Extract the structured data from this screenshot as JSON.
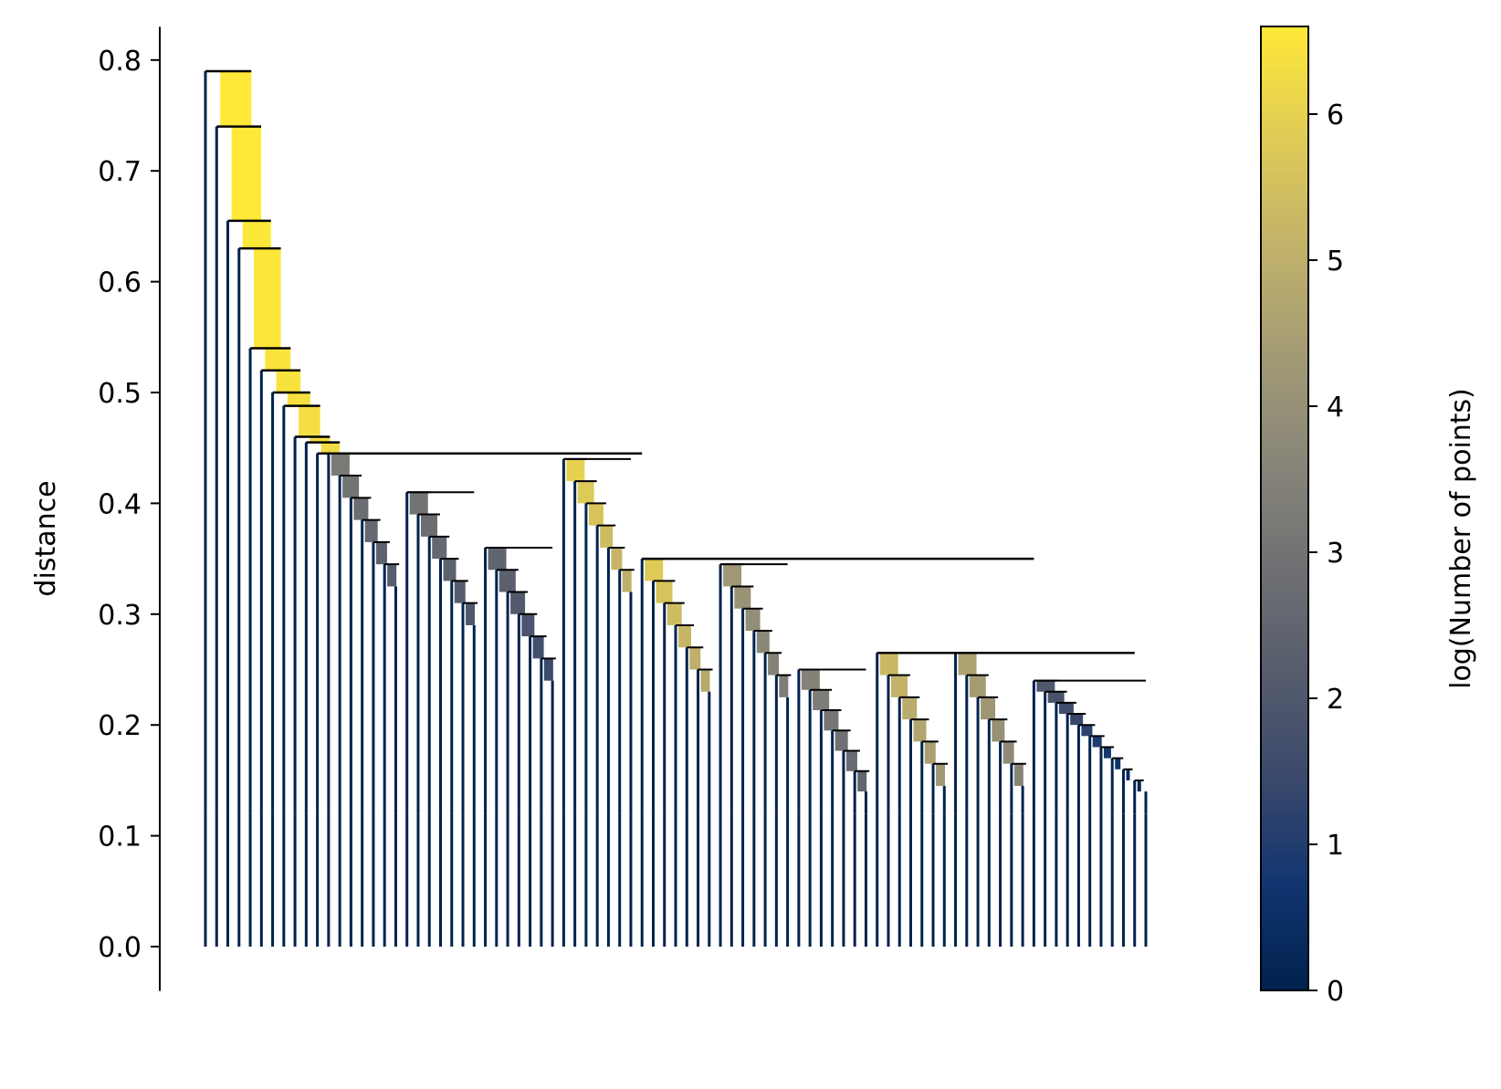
{
  "chart_data": {
    "type": "dendrogram",
    "ylabel": "distance",
    "ylim": [
      -0.04,
      0.83
    ],
    "yticks": [
      0.0,
      0.1,
      0.2,
      0.3,
      0.4,
      0.5,
      0.6,
      0.7,
      0.8
    ],
    "ytick_labels": [
      "0.0",
      "0.1",
      "0.2",
      "0.3",
      "0.4",
      "0.5",
      "0.6",
      "0.7",
      "0.8"
    ],
    "n_leaves": 85,
    "colorbar": {
      "label": "log(Number of points)",
      "range": [
        0,
        6.6
      ],
      "ticks": [
        0,
        1,
        2,
        3,
        4,
        5,
        6
      ],
      "tick_labels": [
        "0",
        "1",
        "2",
        "3",
        "4",
        "5",
        "6"
      ],
      "colormap": "cividis",
      "colors": [
        "#00224e",
        "#123570",
        "#3b496c",
        "#575d6d",
        "#707173",
        "#8a8779",
        "#a59c74",
        "#c3b369",
        "#e1cc55",
        "#fee838"
      ]
    },
    "spine_distances": [
      0.79,
      0.74,
      0.655,
      0.63,
      0.54,
      0.52,
      0.5,
      0.488,
      0.46,
      0.455,
      0.445
    ],
    "spine_log_counts": [
      6.6,
      6.6,
      6.58,
      6.55,
      6.5,
      6.45,
      6.4,
      6.35,
      6.3,
      6.25,
      6.2
    ],
    "subclusters": [
      {
        "distance": 0.445,
        "log_count": 3.2
      },
      {
        "distance": 0.41,
        "log_count": 3.0
      },
      {
        "distance": 0.36,
        "log_count": 2.5
      },
      {
        "distance": 0.44,
        "log_count": 6.0
      },
      {
        "distance": 0.35,
        "log_count": 5.8
      },
      {
        "distance": 0.345,
        "log_count": 4.3
      },
      {
        "distance": 0.25,
        "log_count": 3.5
      },
      {
        "distance": 0.265,
        "log_count": 5.3
      },
      {
        "distance": 0.265,
        "log_count": 4.6
      },
      {
        "distance": 0.24,
        "log_count": 2.0
      }
    ]
  }
}
